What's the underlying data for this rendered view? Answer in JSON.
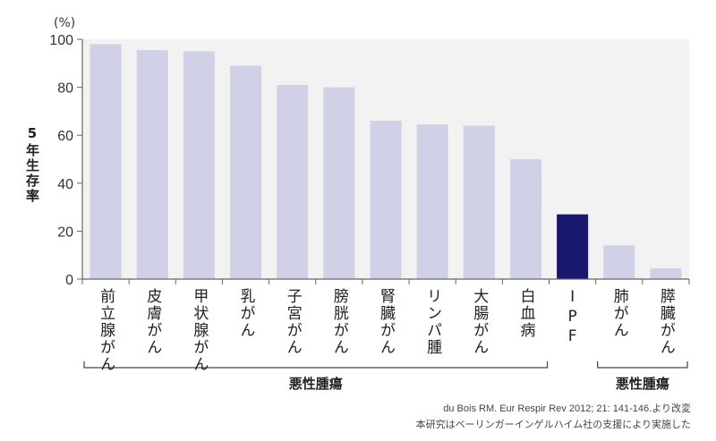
{
  "chart_data": {
    "type": "bar",
    "unit_label": "(%)",
    "ylabel": "5年生存率",
    "ylim": [
      0,
      100
    ],
    "yticks": [
      0,
      20,
      40,
      60,
      80,
      100
    ],
    "grid": false,
    "categories": [
      "前立腺がん",
      "皮膚がん",
      "甲状腺がん",
      "乳がん",
      "子宮がん",
      "膀胱がん",
      "腎臓がん",
      "リンパ腫",
      "大腸がん",
      "白血病",
      "IPF",
      "肺がん",
      "膵臓がん"
    ],
    "values": [
      98,
      95.5,
      95,
      89,
      81,
      80,
      66,
      64.5,
      64,
      50,
      27,
      14,
      4.5
    ],
    "colors": {
      "default": "#d0d0e6",
      "highlight": "#17176e",
      "plot_bg": "#f2f2f2"
    },
    "highlight_category": "IPF",
    "groups": [
      {
        "label": "悪性腫瘍",
        "from": 0,
        "to": 9
      },
      {
        "label": "悪性腫瘍",
        "from": 11,
        "to": 12
      }
    ]
  },
  "source": {
    "line1": "du Bois RM. Eur Respir Rev 2012; 21: 141-146.より改変",
    "line2": "本研究はベーリンガーインゲルハイム社の支援により実施した"
  }
}
